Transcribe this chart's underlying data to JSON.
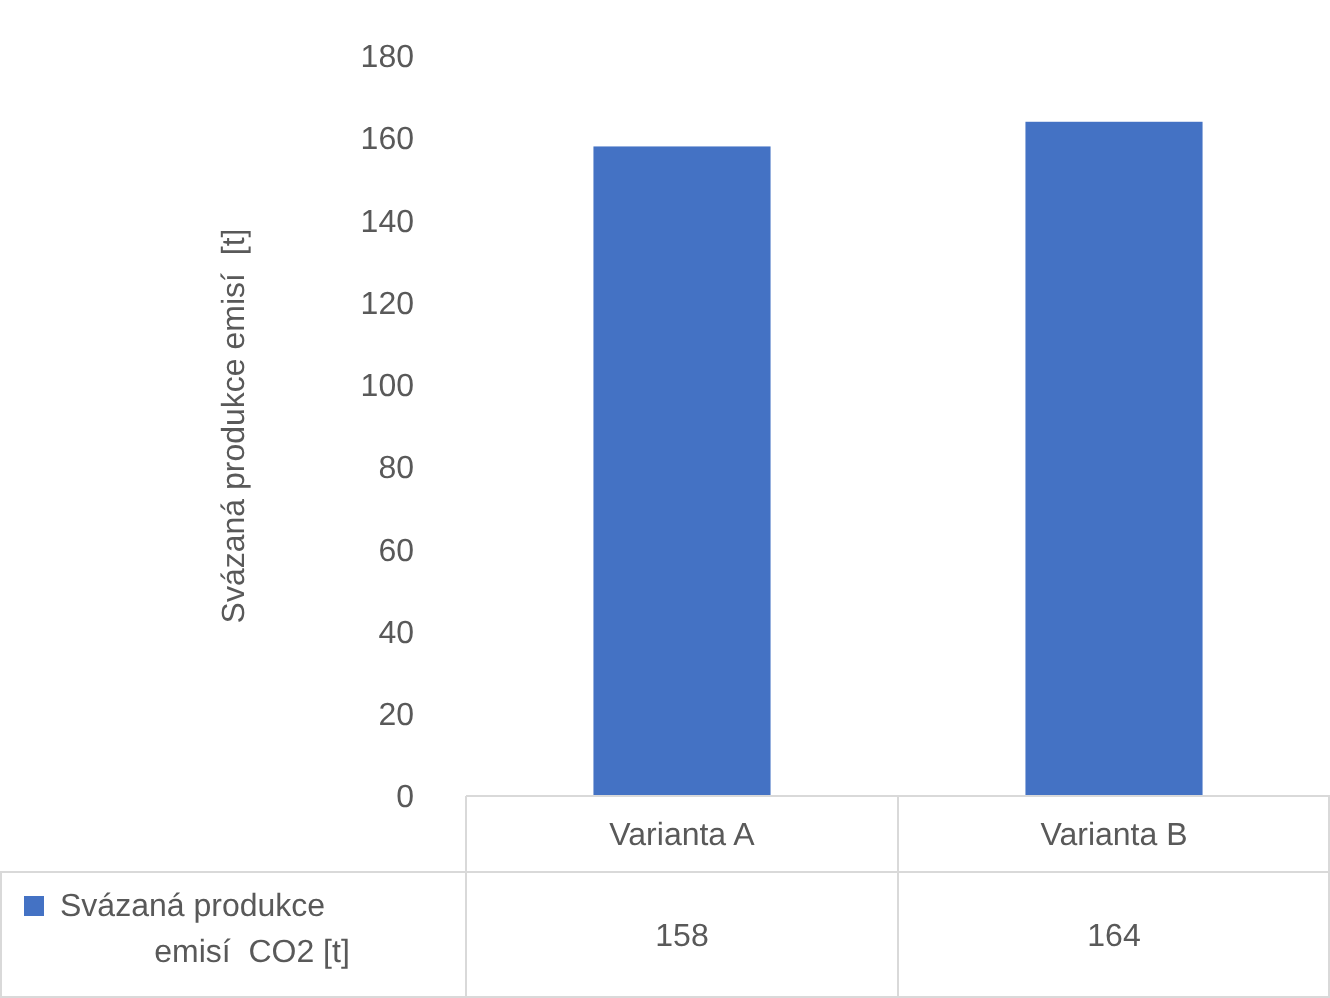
{
  "chart_data": {
    "type": "bar",
    "ylabel": "Svázaná produkce emisí  [t]",
    "categories": [
      "Varianta A",
      "Varianta B"
    ],
    "series": [
      {
        "name": "Svázaná produkce emisí  CO2 [t]",
        "color": "#4472c4",
        "values": [
          158,
          164
        ]
      }
    ],
    "ylim": [
      0,
      180
    ],
    "yticks": [
      0,
      20,
      40,
      60,
      80,
      100,
      120,
      140,
      160,
      180
    ],
    "data_labels": true,
    "legend": "bottom",
    "grid": false
  }
}
